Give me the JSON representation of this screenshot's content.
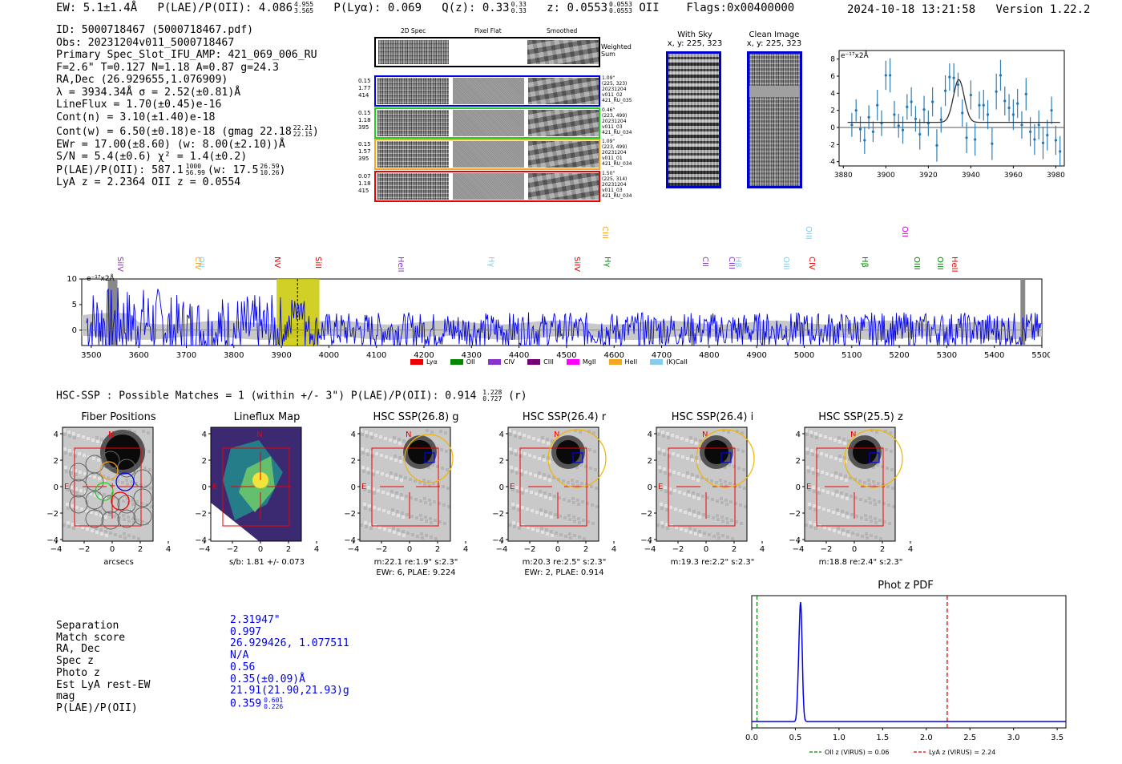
{
  "header": {
    "ew": "EW: 5.1±1.4Å",
    "plae_label": "P(LAE)/P(OII): 4.086",
    "plae_sup": "4.955",
    "plae_sub": "3.565",
    "plya": "P(Lyα): 0.069",
    "q_label": "Q(z): 0.33",
    "q_sup": "0.33",
    "q_sub": "0.33",
    "z_label": "z: 0.0553",
    "z_sup": "0.0553",
    "z_sub": "0.0553",
    "z_line": "OII",
    "flags": "Flags:0x00400000",
    "datetime": "2024-10-18 13:21:58",
    "version": "Version 1.22.2"
  },
  "info": {
    "lines": [
      "ID: 5000718467 (5000718467.pdf)",
      "Obs: 20231204v011_5000718467",
      "Primary Spec_Slot_IFU_AMP: 421_069_006_RU",
      "F=2.6\"  T=0.127  N=1.18  A=0.87  g=24.3",
      "RA,Dec (26.929655,1.076909)",
      "λ = 3934.34Å   σ = 2.52(±0.81)Å",
      "LineFlux = 1.70(±0.45)e-16",
      "Cont(n) = 3.10(±1.40)e-18"
    ],
    "contw": "Cont(w) = 6.50(±0.18)e-18 (gmag 22.18",
    "contw_sup": "22.21",
    "contw_sub": "22.15",
    "ewr": "EWr = 17.00(±8.60) (w: 8.00(±2.10))Å",
    "sn": "S/N = 5.4(±0.6)  χ² = 1.4(±0.2)",
    "plae2": "P(LAE)/P(OII): 587.1",
    "plae2_sup": "1000",
    "plae2_sub": "56.99",
    "plae2_w": "(w: 17.5",
    "plae2_w_sup": "26.59",
    "plae2_w_sub": "10.26",
    "zline": "LyA z = 2.2364   OII z = 0.0554"
  },
  "spec2d": {
    "col_titles": [
      "2D Spec",
      "Pixel Flat",
      "Smoothed"
    ],
    "weighted_label": "Weighted\nSum",
    "rows": [
      {
        "left": [
          "0.15",
          "1.77",
          "414"
        ],
        "right": [
          "1.09\"",
          "(225, 323)",
          "20231204",
          "v011_02",
          "421_RU_035"
        ],
        "color": "#0000ee"
      },
      {
        "left": [
          "0.15",
          "1.18",
          "395"
        ],
        "right": [
          "0.46\"",
          "(223, 499)",
          "20231204",
          "v011_03",
          "421_RU_034"
        ],
        "color": "#22cc22"
      },
      {
        "left": [
          "0.15",
          "1.57",
          "395"
        ],
        "right": [
          "1.09\"",
          "(223, 499)",
          "20231204",
          "v011_01",
          "421_RU_034"
        ],
        "color": "#f5a623"
      },
      {
        "left": [
          "0.07",
          "1.18",
          "415"
        ],
        "right": [
          "1.50\"",
          "(225, 314)",
          "20231204",
          "v011_03",
          "421_RU_034"
        ],
        "color": "#ee0000"
      }
    ]
  },
  "sky": {
    "with_sky_title": "With Sky",
    "with_sky_coords": "x, y: 225, 323",
    "clean_title": "Clean Image",
    "clean_coords": "x, y: 225, 323"
  },
  "zoom_chart": {
    "ylabel": "e⁻¹⁷x2Å"
  },
  "full_spec": {
    "ylabel": "e⁻¹⁷x2Å",
    "line_tags": [
      {
        "name": "SiIV",
        "color": "#8833cc",
        "wave": 3560
      },
      {
        "name": "CIV",
        "color": "#f5a623",
        "wave": 3722
      },
      {
        "name": "OII",
        "color": "#87ceeb",
        "wave": 3730
      },
      {
        "name": "NV",
        "color": "#ee0000",
        "wave": 3890
      },
      {
        "name": "SiII",
        "color": "#ee0000",
        "wave": 3975
      },
      {
        "name": "HeII",
        "color": "#8833cc",
        "wave": 4150
      },
      {
        "name": "Hγ",
        "color": "#87ceeb",
        "wave": 4340
      },
      {
        "name": "SiIV",
        "color": "#ee0000",
        "wave": 4520
      },
      {
        "name": "CIII",
        "color": "#f5a623",
        "wave": 4580
      },
      {
        "name": "Hγ",
        "color": "#008800",
        "wave": 4585
      },
      {
        "name": "CII",
        "color": "#8833cc",
        "wave": 4790
      },
      {
        "name": "CIII",
        "color": "#8833cc",
        "wave": 4845
      },
      {
        "name": "Hβ",
        "color": "#87ceeb",
        "wave": 4860
      },
      {
        "name": "OIII",
        "color": "#87ceeb",
        "wave": 4960
      },
      {
        "name": "OIII",
        "color": "#87ceeb",
        "wave": 5007
      },
      {
        "name": "CIV",
        "color": "#ee0000",
        "wave": 5015
      },
      {
        "name": "Hβ",
        "color": "#008800",
        "wave": 5125
      },
      {
        "name": "OII",
        "color": "#cc00cc",
        "wave": 5210
      },
      {
        "name": "OIII",
        "color": "#008800",
        "wave": 5235
      },
      {
        "name": "OIII",
        "color": "#008800",
        "wave": 5285
      },
      {
        "name": "HeII",
        "color": "#ee0000",
        "wave": 5315
      }
    ],
    "legend": [
      {
        "label": "Lyα",
        "color": "#ee0000"
      },
      {
        "label": "OII",
        "color": "#008800"
      },
      {
        "label": "CIV",
        "color": "#8833cc"
      },
      {
        "label": "CIII",
        "color": "#770077"
      },
      {
        "label": "MgII",
        "color": "#ff00ff"
      },
      {
        "label": "HeII",
        "color": "#f5a623"
      },
      {
        "label": "(K)CaII",
        "color": "#87ceeb"
      }
    ]
  },
  "hsc": {
    "title": "HSC-SSP : Possible Matches = 1 (within +/- 3\")  P(LAE)/P(OII): 0.914",
    "title_sup": "1.228",
    "title_sub": "0.727",
    "title_band": "(r)",
    "panels": [
      {
        "title": "Fiber Positions",
        "caption": [
          "arcsecs"
        ]
      },
      {
        "title": "Lineflux Map",
        "caption": [
          "s/b: 1.81 +/- 0.073"
        ]
      },
      {
        "title": "HSC SSP(26.8) g",
        "caption": [
          "m:22.1  re:1.9\"  s:2.3\"",
          "EWr: 6, PLAE: 9.224"
        ]
      },
      {
        "title": "HSC SSP(26.4) r",
        "caption": [
          "m:20.3  re:2.5\"  s:2.3\"",
          "EWr: 2, PLAE: 0.914"
        ]
      },
      {
        "title": "HSC SSP(26.4) i",
        "caption": [
          "m:19.3  re:2.2\"  s:2.3\""
        ]
      },
      {
        "title": "HSC SSP(25.5) z",
        "caption": [
          "m:18.8  re:2.4\"  s:2.3\""
        ]
      }
    ],
    "north": "N",
    "east": "E",
    "ticks": [
      "−4",
      "−2",
      "0",
      "2",
      "4"
    ]
  },
  "match": {
    "labels": [
      "Separation",
      "Match score",
      "RA, Dec",
      "Spec z",
      "Photo z",
      "Est LyA rest-EW",
      "mag",
      "P(LAE)/P(OII)"
    ],
    "values": [
      "2.31947\"",
      "0.997",
      "26.929426, 1.077511",
      "N/A",
      "0.56",
      "0.35(±0.09)Å",
      "21.91(21.90,21.93)g",
      "0.359"
    ],
    "plae_sup": "0.601",
    "plae_sub": "0.226"
  },
  "chart_data": [
    {
      "type": "line",
      "name": "zoom-spectrum",
      "x": [
        3884,
        3886,
        3888,
        3890,
        3892,
        3894,
        3896,
        3898,
        3900,
        3902,
        3904,
        3906,
        3908,
        3910,
        3912,
        3914,
        3916,
        3918,
        3920,
        3922,
        3924,
        3926,
        3928,
        3930,
        3932,
        3934,
        3936,
        3938,
        3940,
        3942,
        3944,
        3946,
        3948,
        3950,
        3952,
        3954,
        3956,
        3958,
        3960,
        3962,
        3964,
        3966,
        3968,
        3970,
        3972,
        3974,
        3976,
        3978,
        3980,
        3982
      ],
      "y": [
        0.3,
        2.0,
        -0.2,
        -1.5,
        1.2,
        -0.5,
        2.6,
        0.5,
        6.1,
        6.1,
        1.5,
        0.2,
        -0.3,
        2.4,
        3.0,
        1.0,
        -0.8,
        2.1,
        0.5,
        3.0,
        -2.1,
        0.9,
        4.3,
        5.9,
        5.8,
        5.0,
        1.7,
        -1.2,
        3.8,
        -1.4,
        2.6,
        2.6,
        1.5,
        -1.9,
        4.2,
        6.1,
        3.1,
        2.3,
        1.5,
        2.8,
        0.3,
        3.9,
        -0.5,
        -1.4,
        0.3,
        -1.8,
        -0.9,
        2.0,
        -1.5,
        -2.8
      ],
      "fit_center": 3934.34,
      "fit_sigma": 2.52,
      "fit_amp": 5.0,
      "fit_base": 0.6,
      "xlim": [
        3878,
        3984
      ],
      "ylim": [
        -4.5,
        9
      ],
      "xticks": [
        3880,
        3900,
        3920,
        3940,
        3960,
        3980
      ],
      "yticks": [
        -4,
        -2,
        0,
        2,
        4,
        6,
        8
      ],
      "ylabel": "e⁻¹⁷x2Å"
    },
    {
      "type": "line",
      "name": "full-spectrum",
      "xlim": [
        3480,
        5500
      ],
      "ylim": [
        -3,
        10
      ],
      "xticks": [
        3500,
        3600,
        3700,
        3800,
        3900,
        4000,
        4100,
        4200,
        4300,
        4400,
        4500,
        4600,
        4700,
        4800,
        4900,
        5000,
        5100,
        5200,
        5300,
        5400,
        5500
      ],
      "yticks": [
        0,
        5,
        10
      ],
      "highlight": [
        3890,
        3980
      ],
      "marker_wave": 3934,
      "masked": [
        [
          3535,
          3555
        ],
        [
          5455,
          5465
        ]
      ],
      "ylabel": "e⁻¹⁷x2Å"
    },
    {
      "type": "line",
      "name": "photz-pdf",
      "title": "Phot z PDF",
      "xlim": [
        0,
        3.6
      ],
      "xticks": [
        0.0,
        0.5,
        1.0,
        1.5,
        2.0,
        2.5,
        3.0,
        3.5
      ],
      "peak_z": 0.56,
      "oii_z": 0.06,
      "lya_z": 2.24,
      "legend": [
        "OII z (VIRUS) = 0.06",
        "LyA z (VIRUS) = 2.24"
      ]
    }
  ]
}
